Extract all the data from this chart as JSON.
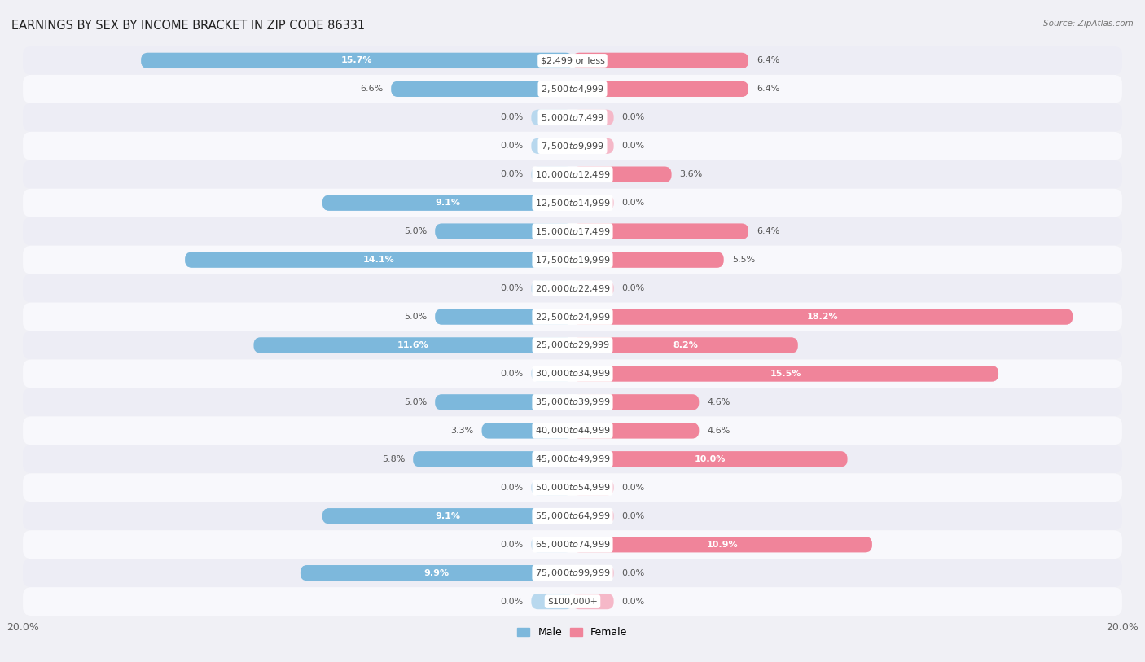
{
  "title": "EARNINGS BY SEX BY INCOME BRACKET IN ZIP CODE 86331",
  "source": "Source: ZipAtlas.com",
  "categories": [
    "$2,499 or less",
    "$2,500 to $4,999",
    "$5,000 to $7,499",
    "$7,500 to $9,999",
    "$10,000 to $12,499",
    "$12,500 to $14,999",
    "$15,000 to $17,499",
    "$17,500 to $19,999",
    "$20,000 to $22,499",
    "$22,500 to $24,999",
    "$25,000 to $29,999",
    "$30,000 to $34,999",
    "$35,000 to $39,999",
    "$40,000 to $44,999",
    "$45,000 to $49,999",
    "$50,000 to $54,999",
    "$55,000 to $64,999",
    "$65,000 to $74,999",
    "$75,000 to $99,999",
    "$100,000+"
  ],
  "male_values": [
    15.7,
    6.6,
    0.0,
    0.0,
    0.0,
    9.1,
    5.0,
    14.1,
    0.0,
    5.0,
    11.6,
    0.0,
    5.0,
    3.3,
    5.8,
    0.0,
    9.1,
    0.0,
    9.9,
    0.0
  ],
  "female_values": [
    6.4,
    6.4,
    0.0,
    0.0,
    3.6,
    0.0,
    6.4,
    5.5,
    0.0,
    18.2,
    8.2,
    15.5,
    4.6,
    4.6,
    10.0,
    0.0,
    0.0,
    10.9,
    0.0,
    0.0
  ],
  "male_color": "#7db8dc",
  "female_color": "#f0849a",
  "male_color_light": "#b8d8ee",
  "female_color_light": "#f5b8c8",
  "axis_max": 20.0,
  "row_color_odd": "#ededf5",
  "row_color_even": "#f8f8fc",
  "bg_color": "#f0f0f5",
  "title_fontsize": 10.5,
  "label_fontsize": 8.0,
  "cat_fontsize": 8.0,
  "tick_fontsize": 9,
  "bar_height": 0.55
}
